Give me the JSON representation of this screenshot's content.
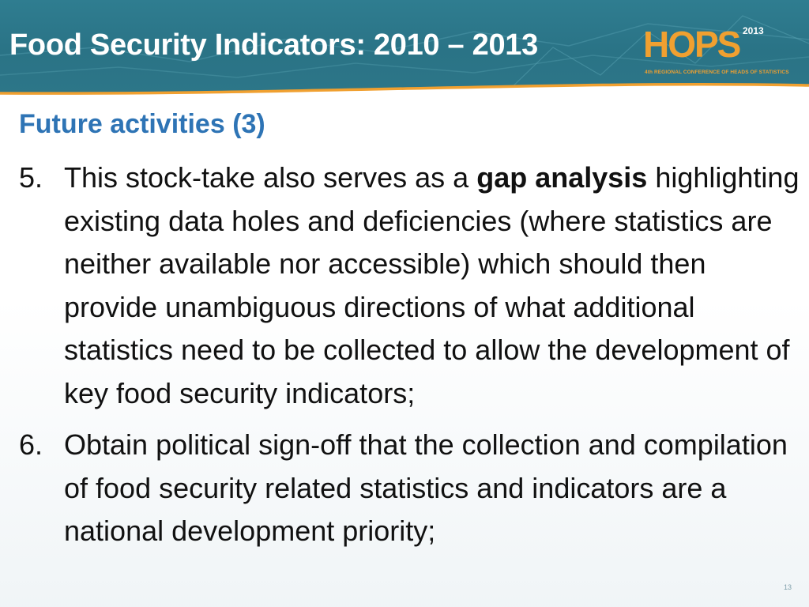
{
  "header": {
    "title": "Food Security Indicators: 2010 – 2013",
    "background_color": "#2a7386",
    "accent_color": "#f0a030"
  },
  "logo": {
    "letters": "HOPS",
    "year": "2013",
    "subtitle": "4th REGIONAL CONFERENCE OF HEADS OF STATISTICS"
  },
  "section": {
    "heading": "Future activities (3)",
    "heading_color": "#2e74b5"
  },
  "items": [
    {
      "number": "5.",
      "text_before": "This stock-take also serves as a ",
      "text_bold": "gap analysis",
      "text_after": " highlighting existing data holes and deficiencies (where statistics are neither available nor accessible) which should then provide unambiguous directions of what additional statistics need to be collected to allow the development of key food security indicators;"
    },
    {
      "number": "6.",
      "text": "Obtain political sign-off that the collection and compilation of food security related statistics and indicators are a national development priority;"
    }
  ],
  "page_number": "13"
}
